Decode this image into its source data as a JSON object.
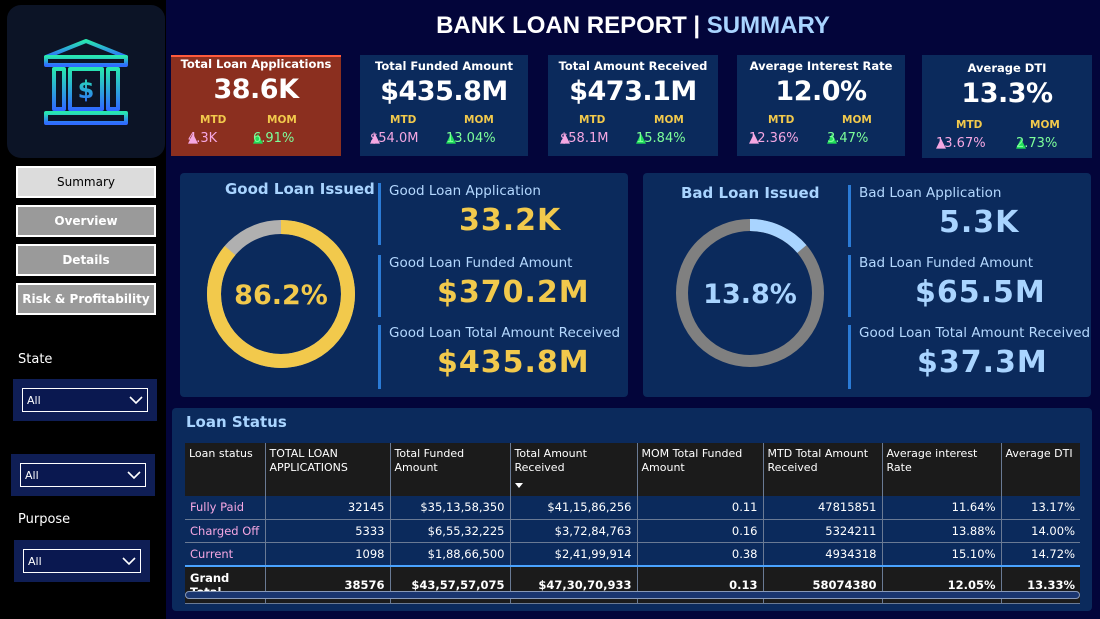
{
  "header": {
    "title_main": "BANK LOAN REPORT |",
    "title_sub": "SUMMARY"
  },
  "sidebar": {
    "logo_icon": "bank-dollar-icon",
    "nav": [
      {
        "label": "Summary",
        "active": true
      },
      {
        "label": "Overview",
        "active": false
      },
      {
        "label": "Details",
        "active": false
      },
      {
        "label": "Risk & Profitability",
        "active": false
      }
    ],
    "filters": {
      "state_label": "State",
      "state_value": "All",
      "middle_value": "All",
      "purpose_label": "Purpose",
      "purpose_value": "All"
    }
  },
  "kpis": [
    {
      "title": "Total Loan Applications",
      "value": "38.6K",
      "mtd_label": "MTD",
      "mom_label": "MOM",
      "mtd": "4.3K",
      "mom": "6.91%"
    },
    {
      "title": "Total Funded Amount",
      "value": "$435.8M",
      "mtd_label": "MTD",
      "mom_label": "MOM",
      "mtd": "$54.0M",
      "mom": "13.04%"
    },
    {
      "title": "Total Amount Received",
      "value": "$473.1M",
      "mtd_label": "MTD",
      "mom_label": "MOM",
      "mtd": "$58.1M",
      "mom": "15.84%"
    },
    {
      "title": "Average Interest Rate",
      "value": "12.0%",
      "mtd_label": "MTD",
      "mom_label": "MOM",
      "mtd": "12.36%",
      "mom": "3.47%"
    },
    {
      "title": "Average DTI",
      "value": "13.3%",
      "mtd_label": "MTD",
      "mom_label": "MOM",
      "mtd": "13.67%",
      "mom": "2.73%"
    }
  ],
  "good_loan": {
    "title": "Good Loan Issued",
    "percent_label": "86.2%",
    "percent": 0.862,
    "metrics": [
      {
        "label": "Good Loan Application",
        "value": "33.2K"
      },
      {
        "label": "Good Loan Funded Amount",
        "value": "$370.2M"
      },
      {
        "label": "Good Loan Total Amount Received",
        "value": "$435.8M"
      }
    ]
  },
  "bad_loan": {
    "title": "Bad Loan Issued",
    "percent_label": "13.8%",
    "percent": 0.138,
    "metrics": [
      {
        "label": "Bad Loan Application",
        "value": "5.3K"
      },
      {
        "label": "Bad Loan Funded Amount",
        "value": "$65.5M"
      },
      {
        "label": "Good Loan Total Amount Received",
        "value": "$37.3M"
      }
    ]
  },
  "loan_status": {
    "title": "Loan Status",
    "columns": [
      "Loan status",
      "TOTAL LOAN APPLICATIONS",
      "Total Funded Amount",
      "Total Amount Received",
      "MOM Total Funded Amount",
      "MTD Total Amount Received",
      "Average interest Rate",
      "Average DTI"
    ],
    "rows": [
      [
        "Fully Paid",
        "32145",
        "$35,13,58,350",
        "$41,15,86,256",
        "0.11",
        "47815851",
        "11.64%",
        "13.17%"
      ],
      [
        "Charged Off",
        "5333",
        "$6,55,32,225",
        "$3,72,84,763",
        "0.16",
        "5324211",
        "13.88%",
        "14.00%"
      ],
      [
        "Current",
        "1098",
        "$1,88,66,500",
        "$2,41,99,914",
        "0.38",
        "4934318",
        "15.10%",
        "14.72%"
      ]
    ],
    "total": [
      "Grand Total",
      "38576",
      "$43,57,57,075",
      "$47,30,70,933",
      "0.13",
      "58074380",
      "12.05%",
      "13.33%"
    ]
  },
  "colors": {
    "background": "#03053a",
    "panel": "#0b2a5c",
    "highlight_kpi": "#8b2f1f",
    "gold": "#f2c94c",
    "lightblue": "#a9d4ff",
    "donut_gray": "#808080",
    "donut_gray_light": "#b0b0b0"
  }
}
